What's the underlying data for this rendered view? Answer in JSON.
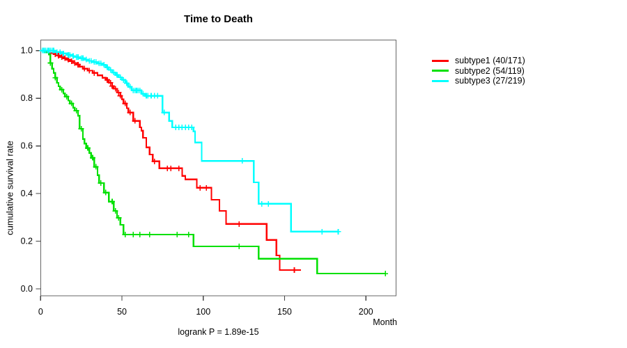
{
  "chart_data": {
    "type": "line",
    "subtype": "kaplan-meier-step",
    "title": "Time to Death",
    "xlabel": "Month",
    "ylabel": "cumulative survival rate",
    "footnote": "logrank P = 1.89e-15",
    "xlim": [
      0,
      218
    ],
    "ylim": [
      0.0,
      1.0
    ],
    "xticks": [
      0,
      50,
      100,
      150,
      200
    ],
    "yticks": [
      0.0,
      0.2,
      0.4,
      0.6,
      0.8,
      1.0
    ],
    "grid": "off",
    "legend_position": "right-outside",
    "axis_color": "#666666",
    "tick_color": "#444444",
    "text_color": "#000000",
    "series": [
      {
        "name": "subtype1",
        "label": "subtype1 (40/171)",
        "events": 40,
        "total": 171,
        "color": "#ff0000",
        "end_month": 160,
        "steps": [
          [
            0,
            1.0
          ],
          [
            3,
            0.994
          ],
          [
            5,
            0.99
          ],
          [
            8,
            0.985
          ],
          [
            10,
            0.979
          ],
          [
            12,
            0.973
          ],
          [
            14,
            0.968
          ],
          [
            16,
            0.962
          ],
          [
            18,
            0.956
          ],
          [
            20,
            0.948
          ],
          [
            22,
            0.941
          ],
          [
            24,
            0.933
          ],
          [
            26,
            0.924
          ],
          [
            29,
            0.916
          ],
          [
            32,
            0.906
          ],
          [
            35,
            0.896
          ],
          [
            38,
            0.886
          ],
          [
            40,
            0.877
          ],
          [
            42,
            0.865
          ],
          [
            44,
            0.851
          ],
          [
            45,
            0.84
          ],
          [
            47,
            0.824
          ],
          [
            49,
            0.81
          ],
          [
            50,
            0.795
          ],
          [
            51,
            0.778
          ],
          [
            53,
            0.758
          ],
          [
            54,
            0.74
          ],
          [
            57,
            0.705
          ],
          [
            61,
            0.678
          ],
          [
            62,
            0.664
          ],
          [
            63,
            0.634
          ],
          [
            65,
            0.594
          ],
          [
            67,
            0.564
          ],
          [
            69,
            0.535
          ],
          [
            73,
            0.506
          ],
          [
            87,
            0.474
          ],
          [
            89,
            0.459
          ],
          [
            96,
            0.424
          ],
          [
            105,
            0.374
          ],
          [
            110,
            0.327
          ],
          [
            114,
            0.272
          ],
          [
            139,
            0.205
          ],
          [
            145,
            0.14
          ],
          [
            147,
            0.079
          ]
        ],
        "censor_marks": [
          [
            1,
            1.0
          ],
          [
            2,
            1.0
          ],
          [
            9,
            0.985
          ],
          [
            11,
            0.979
          ],
          [
            13,
            0.973
          ],
          [
            15,
            0.968
          ],
          [
            17,
            0.962
          ],
          [
            19,
            0.956
          ],
          [
            21,
            0.948
          ],
          [
            23,
            0.941
          ],
          [
            27,
            0.924
          ],
          [
            30,
            0.916
          ],
          [
            33,
            0.906
          ],
          [
            41,
            0.877
          ],
          [
            43,
            0.865
          ],
          [
            44,
            0.851
          ],
          [
            46,
            0.84
          ],
          [
            48,
            0.824
          ],
          [
            49,
            0.81
          ],
          [
            52,
            0.778
          ],
          [
            55,
            0.74
          ],
          [
            58,
            0.705
          ],
          [
            70,
            0.535
          ],
          [
            78,
            0.506
          ],
          [
            80,
            0.506
          ],
          [
            85,
            0.506
          ],
          [
            98,
            0.424
          ],
          [
            102,
            0.424
          ],
          [
            122,
            0.272
          ],
          [
            156,
            0.079
          ]
        ]
      },
      {
        "name": "subtype2",
        "label": "subtype2 (54/119)",
        "events": 54,
        "total": 119,
        "color": "#00e000",
        "end_month": 212,
        "steps": [
          [
            0,
            1.0
          ],
          [
            3,
            0.992
          ],
          [
            5,
            0.983
          ],
          [
            6,
            0.948
          ],
          [
            7,
            0.924
          ],
          [
            8,
            0.906
          ],
          [
            9,
            0.886
          ],
          [
            10,
            0.865
          ],
          [
            11,
            0.85
          ],
          [
            12,
            0.836
          ],
          [
            14,
            0.82
          ],
          [
            15,
            0.807
          ],
          [
            17,
            0.79
          ],
          [
            18,
            0.778
          ],
          [
            20,
            0.76
          ],
          [
            21,
            0.748
          ],
          [
            23,
            0.727
          ],
          [
            24,
            0.672
          ],
          [
            26,
            0.629
          ],
          [
            27,
            0.61
          ],
          [
            28,
            0.591
          ],
          [
            30,
            0.57
          ],
          [
            31,
            0.55
          ],
          [
            33,
            0.512
          ],
          [
            35,
            0.477
          ],
          [
            36,
            0.444
          ],
          [
            39,
            0.404
          ],
          [
            42,
            0.366
          ],
          [
            45,
            0.327
          ],
          [
            47,
            0.298
          ],
          [
            49,
            0.269
          ],
          [
            51,
            0.228
          ],
          [
            94,
            0.178
          ],
          [
            134,
            0.126
          ],
          [
            170,
            0.064
          ]
        ],
        "censor_marks": [
          [
            1,
            1.0
          ],
          [
            6,
            0.948
          ],
          [
            9,
            0.886
          ],
          [
            13,
            0.836
          ],
          [
            16,
            0.807
          ],
          [
            19,
            0.778
          ],
          [
            22,
            0.748
          ],
          [
            25,
            0.672
          ],
          [
            29,
            0.591
          ],
          [
            32,
            0.55
          ],
          [
            34,
            0.512
          ],
          [
            37,
            0.444
          ],
          [
            40,
            0.404
          ],
          [
            44,
            0.366
          ],
          [
            46,
            0.327
          ],
          [
            48,
            0.298
          ],
          [
            52,
            0.228
          ],
          [
            57,
            0.228
          ],
          [
            61,
            0.228
          ],
          [
            67,
            0.228
          ],
          [
            84,
            0.228
          ],
          [
            91,
            0.228
          ],
          [
            122,
            0.178
          ],
          [
            212,
            0.064
          ]
        ]
      },
      {
        "name": "subtype3",
        "label": "subtype3 (27/219)",
        "events": 27,
        "total": 219,
        "color": "#00ffff",
        "end_month": 183,
        "steps": [
          [
            0,
            1.0
          ],
          [
            9,
            0.994
          ],
          [
            13,
            0.988
          ],
          [
            16,
            0.982
          ],
          [
            19,
            0.977
          ],
          [
            21,
            0.973
          ],
          [
            24,
            0.968
          ],
          [
            27,
            0.962
          ],
          [
            29,
            0.957
          ],
          [
            32,
            0.952
          ],
          [
            35,
            0.946
          ],
          [
            38,
            0.94
          ],
          [
            40,
            0.93
          ],
          [
            42,
            0.919
          ],
          [
            44,
            0.908
          ],
          [
            46,
            0.898
          ],
          [
            48,
            0.888
          ],
          [
            50,
            0.877
          ],
          [
            52,
            0.863
          ],
          [
            54,
            0.848
          ],
          [
            56,
            0.833
          ],
          [
            62,
            0.819
          ],
          [
            64,
            0.81
          ],
          [
            75,
            0.74
          ],
          [
            79,
            0.705
          ],
          [
            81,
            0.678
          ],
          [
            94,
            0.661
          ],
          [
            95,
            0.614
          ],
          [
            99,
            0.537
          ],
          [
            131,
            0.447
          ],
          [
            134,
            0.357
          ],
          [
            154,
            0.24
          ]
        ],
        "censor_marks": [
          [
            1,
            1.0
          ],
          [
            2,
            1.0
          ],
          [
            3,
            1.0
          ],
          [
            4,
            1.0
          ],
          [
            5,
            1.0
          ],
          [
            6,
            1.0
          ],
          [
            7,
            1.0
          ],
          [
            8,
            1.0
          ],
          [
            10,
            0.994
          ],
          [
            12,
            0.994
          ],
          [
            14,
            0.988
          ],
          [
            17,
            0.982
          ],
          [
            18,
            0.982
          ],
          [
            20,
            0.977
          ],
          [
            22,
            0.973
          ],
          [
            23,
            0.973
          ],
          [
            25,
            0.968
          ],
          [
            26,
            0.968
          ],
          [
            28,
            0.962
          ],
          [
            30,
            0.957
          ],
          [
            31,
            0.957
          ],
          [
            33,
            0.952
          ],
          [
            34,
            0.952
          ],
          [
            36,
            0.946
          ],
          [
            37,
            0.946
          ],
          [
            39,
            0.94
          ],
          [
            41,
            0.93
          ],
          [
            43,
            0.919
          ],
          [
            45,
            0.908
          ],
          [
            47,
            0.898
          ],
          [
            49,
            0.888
          ],
          [
            51,
            0.877
          ],
          [
            53,
            0.863
          ],
          [
            55,
            0.848
          ],
          [
            57,
            0.833
          ],
          [
            58,
            0.833
          ],
          [
            59,
            0.833
          ],
          [
            60,
            0.833
          ],
          [
            61,
            0.833
          ],
          [
            63,
            0.819
          ],
          [
            65,
            0.81
          ],
          [
            66,
            0.81
          ],
          [
            68,
            0.81
          ],
          [
            70,
            0.81
          ],
          [
            72,
            0.81
          ],
          [
            76,
            0.74
          ],
          [
            83,
            0.678
          ],
          [
            85,
            0.678
          ],
          [
            87,
            0.678
          ],
          [
            89,
            0.678
          ],
          [
            91,
            0.678
          ],
          [
            93,
            0.678
          ],
          [
            124,
            0.537
          ],
          [
            136,
            0.357
          ],
          [
            140,
            0.357
          ],
          [
            173,
            0.24
          ],
          [
            183,
            0.24
          ]
        ]
      }
    ]
  }
}
